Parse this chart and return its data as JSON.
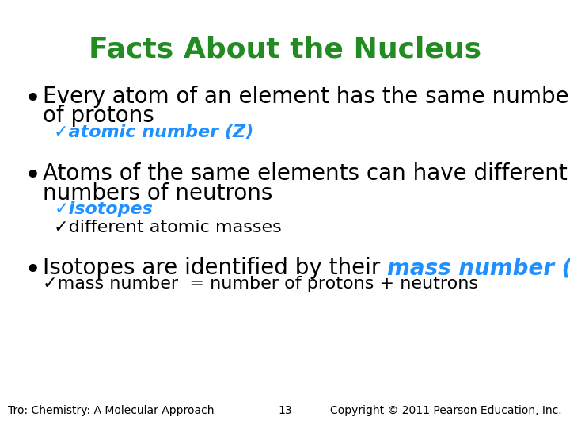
{
  "title": "Facts About the Nucleus",
  "title_color": "#228B22",
  "title_fontsize": 26,
  "bg_color": "#ffffff",
  "bullet_color": "#000000",
  "sub_color": "#1E90FF",
  "footer_left": "Tro: Chemistry: A Molecular Approach",
  "footer_center": "13",
  "footer_right": "Copyright © 2011 Pearson Education, Inc.",
  "bullet1_line1": "Every atom of an element has the same number",
  "bullet1_line2": "of protons",
  "sub1": "✓atomic number (Z)",
  "bullet2_line1": "Atoms of the same elements can have different",
  "bullet2_line2": "numbers of neutrons",
  "sub2a": "✓isotopes",
  "sub2b": "✓different atomic masses",
  "bullet3_part1": "Isotopes are identified by their ",
  "bullet3_part2": "mass number (A)",
  "sub3": "✓mass number  = number of protons + neutrons",
  "body_fontsize": 20,
  "sub_fontsize": 16,
  "footer_fontsize": 10
}
